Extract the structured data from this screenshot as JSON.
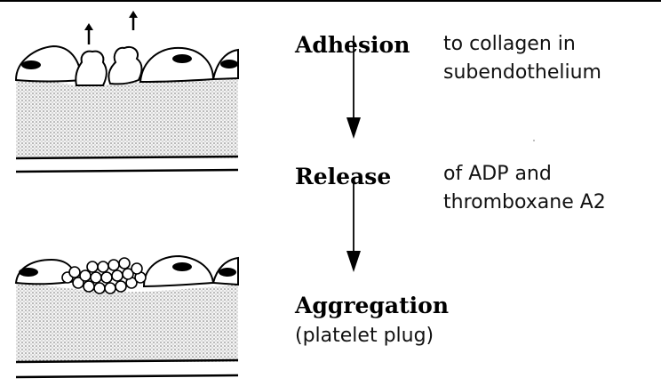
{
  "steps": [
    {
      "title": "Adhesion",
      "desc_line1": "to collagen in",
      "desc_line2": "subendothelium"
    },
    {
      "title": "Release",
      "desc_line1": "of ADP and",
      "desc_line2": "thromboxane A2"
    },
    {
      "title": "Aggregation",
      "desc_line1": "(platelet plug)"
    }
  ],
  "colors": {
    "ink": "#000000",
    "stipple": "#bdbdbd"
  }
}
